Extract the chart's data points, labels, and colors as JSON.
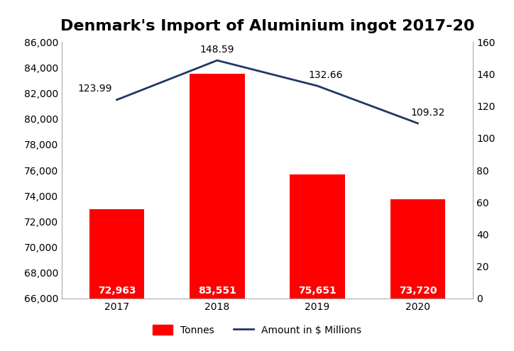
{
  "title": "Denmark's Import of Aluminium ingot 2017-20",
  "years": [
    2017,
    2018,
    2019,
    2020
  ],
  "tonnes": [
    72963,
    83551,
    75651,
    73720
  ],
  "millions": [
    123.99,
    148.59,
    132.66,
    109.32
  ],
  "bar_color": "#FF0000",
  "line_color": "#1F3864",
  "bar_label_color": "#FFFFFF",
  "ylim_left": [
    66000,
    86000
  ],
  "ylim_right": [
    0,
    160
  ],
  "yticks_left": [
    66000,
    68000,
    70000,
    72000,
    74000,
    76000,
    78000,
    80000,
    82000,
    84000,
    86000
  ],
  "yticks_right": [
    0,
    20,
    40,
    60,
    80,
    100,
    120,
    140,
    160
  ],
  "title_fontsize": 16,
  "tick_fontsize": 10,
  "label_fontsize": 10,
  "bar_label_fontsize": 10,
  "line_label_fontsize": 10,
  "legend_label_tonnes": "Tonnes",
  "legend_label_millions": "Amount in $ Millions",
  "bar_width": 0.55
}
